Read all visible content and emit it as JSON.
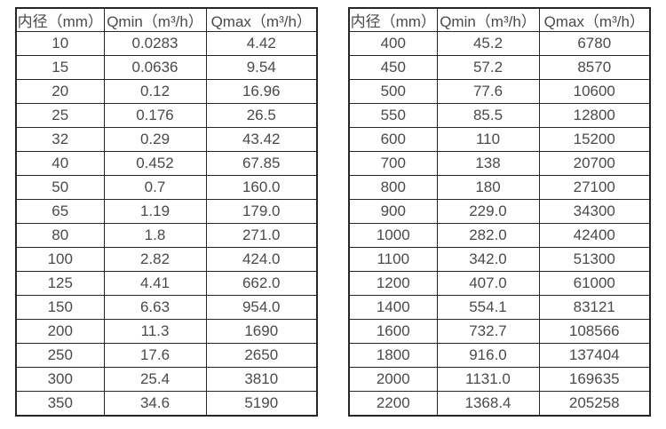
{
  "page": {
    "background": "#ffffff",
    "border_color": "#262626",
    "text_color": "#4a4a4a"
  },
  "tables": [
    {
      "name": "flow-rate-table-small-diameters",
      "headers": [
        "内径（mm）",
        "Qmin（m³/h）",
        "Qmax（m³/h）"
      ],
      "rows": [
        [
          "10",
          "0.0283",
          "4.42"
        ],
        [
          "15",
          "0.0636",
          "9.54"
        ],
        [
          "20",
          "0.12",
          "16.96"
        ],
        [
          "25",
          "0.176",
          "26.5"
        ],
        [
          "32",
          "0.29",
          "43.42"
        ],
        [
          "40",
          "0.452",
          "67.85"
        ],
        [
          "50",
          "0.7",
          "160.0"
        ],
        [
          "65",
          "1.19",
          "179.0"
        ],
        [
          "80",
          "1.8",
          "271.0"
        ],
        [
          "100",
          "2.82",
          "424.0"
        ],
        [
          "125",
          "4.41",
          "662.0"
        ],
        [
          "150",
          "6.63",
          "954.0"
        ],
        [
          "200",
          "11.3",
          "1690"
        ],
        [
          "250",
          "17.6",
          "2650"
        ],
        [
          "300",
          "25.4",
          "3810"
        ],
        [
          "350",
          "34.6",
          "5190"
        ]
      ]
    },
    {
      "name": "flow-rate-table-large-diameters",
      "headers": [
        "内径（mm）",
        "Qmin（m³/h）",
        "Qmax（m³/h）"
      ],
      "rows": [
        [
          "400",
          "45.2",
          "6780"
        ],
        [
          "450",
          "57.2",
          "8570"
        ],
        [
          "500",
          "77.6",
          "10600"
        ],
        [
          "550",
          "85.5",
          "12800"
        ],
        [
          "600",
          "110",
          "15200"
        ],
        [
          "700",
          "138",
          "20700"
        ],
        [
          "800",
          "180",
          "27100"
        ],
        [
          "900",
          "229.0",
          "34300"
        ],
        [
          "1000",
          "282.0",
          "42400"
        ],
        [
          "1100",
          "342.0",
          "51300"
        ],
        [
          "1200",
          "407.0",
          "61000"
        ],
        [
          "1400",
          "554.1",
          "83121"
        ],
        [
          "1600",
          "732.7",
          "108566"
        ],
        [
          "1800",
          "916.0",
          "137404"
        ],
        [
          "2000",
          "1131.0",
          "169635"
        ],
        [
          "2200",
          "1368.4",
          "205258"
        ]
      ]
    }
  ]
}
